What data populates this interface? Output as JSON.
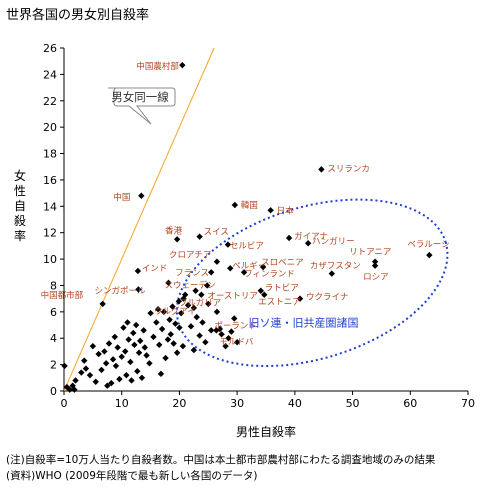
{
  "chart_data": {
    "type": "scatter",
    "title": "世界各国の男女別自殺率",
    "xlabel": "男性自殺率",
    "ylabel": "女性自殺率",
    "xlim": [
      0,
      70
    ],
    "ylim": [
      0,
      26
    ],
    "xticks": [
      0,
      10,
      20,
      30,
      40,
      50,
      60,
      70
    ],
    "yticks": [
      0,
      2,
      4,
      6,
      8,
      10,
      12,
      14,
      16,
      18,
      20,
      22,
      24,
      26
    ],
    "grid": false,
    "reference_line": {
      "label": "男女同一線",
      "slope": 1,
      "color": "#f5a623"
    },
    "ellipse_label": "旧ソ連・旧共産圏諸国",
    "labeled_points": [
      {
        "name": "中国農村部",
        "x": 20.5,
        "y": 24.7
      },
      {
        "name": "スリランカ",
        "x": 44.6,
        "y": 16.8
      },
      {
        "name": "中国",
        "x": 13.4,
        "y": 14.8
      },
      {
        "name": "韓国",
        "x": 29.6,
        "y": 14.1
      },
      {
        "name": "日本",
        "x": 35.8,
        "y": 13.7
      },
      {
        "name": "スイス",
        "x": 23.5,
        "y": 11.7
      },
      {
        "name": "香港",
        "x": 19.6,
        "y": 11.5
      },
      {
        "name": "ガイアナ",
        "x": 39.0,
        "y": 11.6
      },
      {
        "name": "セルビア",
        "x": 28.4,
        "y": 11.1
      },
      {
        "name": "ハンガリー",
        "x": 42.3,
        "y": 11.2
      },
      {
        "name": "ベラルーシ",
        "x": 63.3,
        "y": 10.3
      },
      {
        "name": "リトアニア",
        "x": 53.9,
        "y": 9.8
      },
      {
        "name": "クロアチア",
        "x": 26.5,
        "y": 9.8
      },
      {
        "name": "スロベニア",
        "x": 34.5,
        "y": 9.4
      },
      {
        "name": "ロシア",
        "x": 53.9,
        "y": 9.5
      },
      {
        "name": "ベルギー",
        "x": 28.8,
        "y": 9.3
      },
      {
        "name": "カザフスタン",
        "x": 46.4,
        "y": 8.9
      },
      {
        "name": "フランス",
        "x": 25.5,
        "y": 9.0
      },
      {
        "name": "フィンランド",
        "x": 31.2,
        "y": 9.0
      },
      {
        "name": "インド",
        "x": 12.8,
        "y": 9.1
      },
      {
        "name": "スウェーデン",
        "x": 18.1,
        "y": 8.2
      },
      {
        "name": "シンガポール",
        "x": 12.9,
        "y": 7.7
      },
      {
        "name": "オーストリア",
        "x": 23.8,
        "y": 7.3
      },
      {
        "name": "ラトビア",
        "x": 34.1,
        "y": 7.6
      },
      {
        "name": "中国都市部",
        "x": 6.7,
        "y": 6.6
      },
      {
        "name": "ブルガリア",
        "x": 19.9,
        "y": 6.8
      },
      {
        "name": "ウクライナ",
        "x": 40.9,
        "y": 7.0
      },
      {
        "name": "エストニア",
        "x": 34.7,
        "y": 7.3
      },
      {
        "name": "ウルグアイ",
        "x": 22.5,
        "y": 6.3
      },
      {
        "name": "ポーランド",
        "x": 26.4,
        "y": 4.6
      },
      {
        "name": "モルドバ",
        "x": 27.3,
        "y": 4.3
      }
    ],
    "other_points": [
      [
        0.1,
        1.9
      ],
      [
        0.5,
        0.3
      ],
      [
        1.0,
        0.1
      ],
      [
        1.5,
        0.4
      ],
      [
        1.8,
        0.1
      ],
      [
        2.0,
        0.8
      ],
      [
        3.0,
        1.4
      ],
      [
        3.5,
        2.3
      ],
      [
        3.8,
        1.7
      ],
      [
        4.5,
        1.2
      ],
      [
        5.0,
        3.4
      ],
      [
        5.5,
        0.7
      ],
      [
        6.0,
        2.8
      ],
      [
        6.5,
        1.6
      ],
      [
        7.0,
        3.0
      ],
      [
        7.3,
        2.1
      ],
      [
        7.5,
        0.4
      ],
      [
        7.8,
        3.6
      ],
      [
        8.2,
        0.6
      ],
      [
        8.5,
        2.4
      ],
      [
        8.8,
        4.1
      ],
      [
        9.0,
        1.9
      ],
      [
        9.3,
        3.3
      ],
      [
        9.6,
        0.9
      ],
      [
        10.0,
        2.6
      ],
      [
        10.3,
        4.8
      ],
      [
        10.6,
        3.0
      ],
      [
        10.8,
        1.2
      ],
      [
        11.0,
        5.2
      ],
      [
        11.2,
        3.9
      ],
      [
        11.5,
        2.2
      ],
      [
        11.7,
        0.8
      ],
      [
        12.0,
        4.4
      ],
      [
        12.2,
        3.5
      ],
      [
        12.5,
        5.0
      ],
      [
        12.7,
        1.5
      ],
      [
        13.0,
        2.9
      ],
      [
        13.2,
        3.8
      ],
      [
        13.5,
        1.0
      ],
      [
        13.8,
        4.6
      ],
      [
        14.0,
        3.3
      ],
      [
        14.3,
        2.7
      ],
      [
        15.0,
        5.9
      ],
      [
        15.5,
        4.1
      ],
      [
        16.0,
        5.2
      ],
      [
        16.3,
        6.2
      ],
      [
        16.5,
        3.5
      ],
      [
        17.0,
        4.7
      ],
      [
        17.3,
        6.0
      ],
      [
        17.6,
        2.5
      ],
      [
        18.0,
        3.9
      ],
      [
        18.3,
        5.4
      ],
      [
        18.5,
        4.3
      ],
      [
        18.8,
        6.4
      ],
      [
        19.0,
        3.6
      ],
      [
        19.3,
        5.1
      ],
      [
        19.6,
        2.9
      ],
      [
        20.0,
        4.8
      ],
      [
        20.3,
        5.9
      ],
      [
        20.6,
        3.4
      ],
      [
        21.0,
        7.3
      ],
      [
        21.5,
        6.5
      ],
      [
        22.0,
        4.9
      ],
      [
        22.5,
        3.1
      ],
      [
        23.0,
        5.6
      ],
      [
        23.5,
        4.2
      ],
      [
        24.0,
        5.2
      ],
      [
        24.5,
        3.7
      ],
      [
        25.0,
        6.6
      ],
      [
        25.5,
        4.6
      ],
      [
        26.5,
        6.0
      ],
      [
        27.0,
        4.7
      ],
      [
        28.0,
        3.4
      ],
      [
        29.0,
        4.5
      ],
      [
        29.5,
        5.5
      ],
      [
        30.0,
        3.7
      ],
      [
        28.5,
        4.0
      ],
      [
        24.8,
        8.0
      ],
      [
        22.8,
        7.6
      ],
      [
        20.7,
        7.0
      ],
      [
        14.8,
        2.1
      ],
      [
        16.8,
        1.3
      ]
    ]
  },
  "notes": {
    "line1": "(注)自殺率=10万人当たり自殺者数。中国は本土都市部農村部にわたる調査地域のみの結果",
    "line2": "(資料)WHO (2009年段階で最も新しい各国のデータ)"
  }
}
